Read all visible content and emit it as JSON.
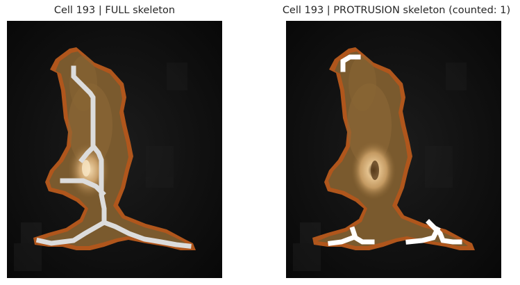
{
  "panels": {
    "left": {
      "title": "Cell 193 | FULL skeleton",
      "skeleton_color": "#dcdcdc"
    },
    "right": {
      "title": "Cell 193 | PROTRUSION skeleton (counted: 1)",
      "skeleton_color": "#ffffff"
    }
  },
  "colors": {
    "background": "#0b0b0b",
    "cell_fill": "#7a5a2e",
    "cell_outline": "#b0561c",
    "nucleus": "#e8c89a"
  }
}
